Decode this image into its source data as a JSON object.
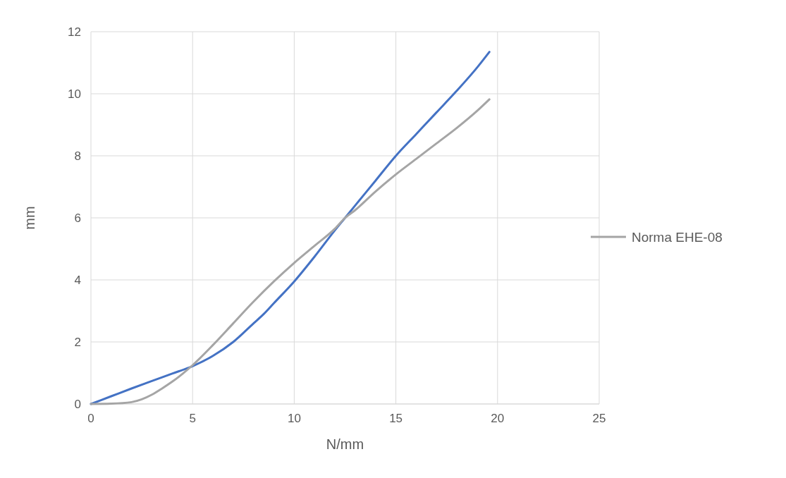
{
  "chart_data": {
    "type": "line",
    "xlabel": "N/mm",
    "ylabel": "mm",
    "xlim": [
      0,
      25
    ],
    "xticks": [
      0,
      5,
      10,
      15,
      20,
      25
    ],
    "ylim": [
      0,
      12
    ],
    "yticks": [
      0,
      2,
      4,
      6,
      8,
      10,
      12
    ],
    "grid": true,
    "legend": "right",
    "marker": "none",
    "line_style": "solid",
    "series": [
      {
        "color": "#4472c4",
        "x": [
          0,
          1,
          2,
          3,
          4,
          5,
          6,
          7,
          8,
          8.5,
          9,
          10,
          11,
          12,
          12.5,
          13,
          14,
          15,
          16,
          17,
          18,
          19,
          19.6
        ],
        "values": [
          0,
          0.25,
          0.5,
          0.74,
          0.98,
          1.22,
          1.55,
          2.0,
          2.6,
          2.9,
          3.25,
          3.95,
          4.75,
          5.6,
          6.0,
          6.4,
          7.2,
          8.0,
          8.7,
          9.4,
          10.1,
          10.85,
          11.35
        ]
      },
      {
        "name": "Norma EHE-08",
        "color": "#a5a5a5",
        "x": [
          0,
          1,
          2,
          2.5,
          3,
          3.5,
          4,
          4.5,
          5,
          6,
          7,
          8,
          9,
          10,
          11,
          12,
          12.5,
          13,
          14,
          15,
          16,
          17,
          18,
          19,
          19.6
        ],
        "values": [
          0,
          0.01,
          0.06,
          0.15,
          0.3,
          0.5,
          0.72,
          0.97,
          1.25,
          1.9,
          2.6,
          3.3,
          3.95,
          4.55,
          5.1,
          5.65,
          6.0,
          6.25,
          6.85,
          7.4,
          7.9,
          8.4,
          8.9,
          9.45,
          9.82
        ]
      }
    ]
  }
}
